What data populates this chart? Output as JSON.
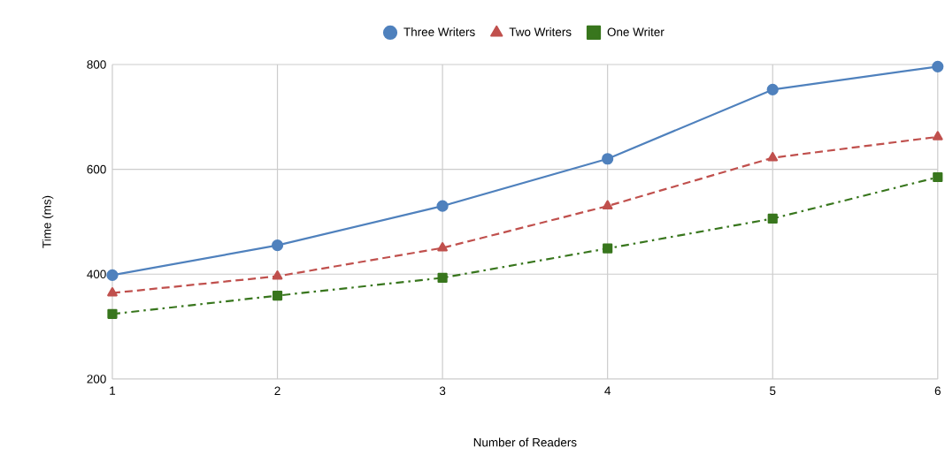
{
  "chart_data": {
    "type": "line",
    "xlabel": "Number of Readers",
    "ylabel": "Time (ms)",
    "x": [
      1,
      2,
      3,
      4,
      5,
      6
    ],
    "series": [
      {
        "name": "Three Writers",
        "color": "#4f81bd",
        "marker": "circle",
        "line_style": "solid",
        "values": [
          398,
          455,
          530,
          620,
          752,
          796
        ]
      },
      {
        "name": "Two Writers",
        "color": "#c0504d",
        "marker": "triangle",
        "line_style": "dashed",
        "values": [
          364,
          396,
          450,
          530,
          622,
          662
        ]
      },
      {
        "name": "One Writer",
        "color": "#38761d",
        "marker": "square",
        "line_style": "dashdot",
        "values": [
          324,
          359,
          393,
          449,
          506,
          585
        ]
      }
    ],
    "xlim": [
      1,
      6
    ],
    "xticks": [
      1,
      2,
      3,
      4,
      5,
      6
    ],
    "ylim": [
      200,
      800
    ],
    "yticks": [
      200,
      400,
      600,
      800
    ],
    "grid": true,
    "legend": "top"
  }
}
